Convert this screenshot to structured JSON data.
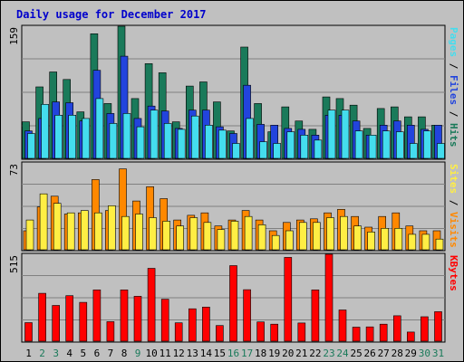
{
  "chart_data": {
    "type": "bar",
    "title": "Daily usage for December 2017",
    "days": [
      "1",
      "2",
      "3",
      "4",
      "5",
      "6",
      "7",
      "8",
      "9",
      "10",
      "11",
      "12",
      "13",
      "14",
      "15",
      "16",
      "17",
      "18",
      "19",
      "20",
      "21",
      "22",
      "23",
      "24",
      "25",
      "26",
      "27",
      "28",
      "29",
      "30",
      "31"
    ],
    "weekend_days": [
      "2",
      "3",
      "9",
      "16",
      "17",
      "23",
      "24",
      "30",
      "31"
    ],
    "panels": [
      {
        "id": "hits",
        "ymax": 159,
        "ymax_label": "159",
        "right_labels": [
          "Pages",
          "Files",
          "Hits"
        ],
        "series": [
          {
            "name": "Hits",
            "color": "#1a7a5a",
            "values": [
              44,
              86,
              104,
              95,
              56,
              150,
              66,
              159,
              72,
              114,
              103,
              44,
              87,
              92,
              68,
              33,
              134,
              66,
              32,
              62,
              45,
              35,
              74,
              72,
              64,
              36,
              60,
              62,
              50,
              50,
              40
            ]
          },
          {
            "name": "Files",
            "color": "#2244dd",
            "values": [
              33,
              48,
              68,
              67,
              45,
              106,
              54,
              123,
              48,
              63,
              57,
              36,
              58,
              58,
              38,
              30,
              88,
              41,
              40,
              36,
              35,
              28,
              52,
              52,
              45,
              28,
              40,
              45,
              40,
              35,
              40
            ]
          },
          {
            "name": "Pages",
            "color": "#44ddee",
            "values": [
              30,
              65,
              52,
              52,
              48,
              72,
              42,
              54,
              38,
              58,
              42,
              35,
              51,
              40,
              34,
              18,
              48,
              20,
              18,
              32,
              28,
              22,
              58,
              58,
              33,
              28,
              33,
              32,
              18,
              33,
              18
            ]
          }
        ]
      },
      {
        "id": "visits",
        "ymax": 73,
        "ymax_label": "73",
        "right_labels": [
          "Sites",
          "Visits"
        ],
        "series": [
          {
            "name": "Visits",
            "color": "#ff8800",
            "values": [
              16,
              36,
              45,
              30,
              31,
              59,
              33,
              68,
              41,
              53,
              43,
              25,
              29,
              31,
              20,
              25,
              33,
              25,
              16,
              23,
              25,
              26,
              31,
              34,
              28,
              19,
              28,
              31,
              20,
              16,
              16
            ]
          },
          {
            "name": "Sites",
            "color": "#ffee44",
            "values": [
              25,
              47,
              39,
              31,
              33,
              31,
              37,
              28,
              30,
              27,
              24,
              20,
              27,
              23,
              17,
              24,
              28,
              21,
              12,
              16,
              23,
              23,
              27,
              28,
              20,
              15,
              18,
              18,
              13,
              13,
              9
            ]
          }
        ]
      },
      {
        "id": "kbytes",
        "ymax": 515,
        "ymax_label": "515",
        "right_labels": [
          "KBytes"
        ],
        "series": [
          {
            "name": "KBytes",
            "color": "#ff0000",
            "values": [
              110,
              284,
              212,
              270,
              230,
              304,
              116,
              304,
              266,
              432,
              249,
              109,
              192,
              202,
              93,
              448,
              305,
              114,
              101,
              497,
              108,
              304,
              515,
              185,
              83,
              85,
              101,
              151,
              54,
              145,
              175
            ]
          }
        ]
      }
    ]
  }
}
